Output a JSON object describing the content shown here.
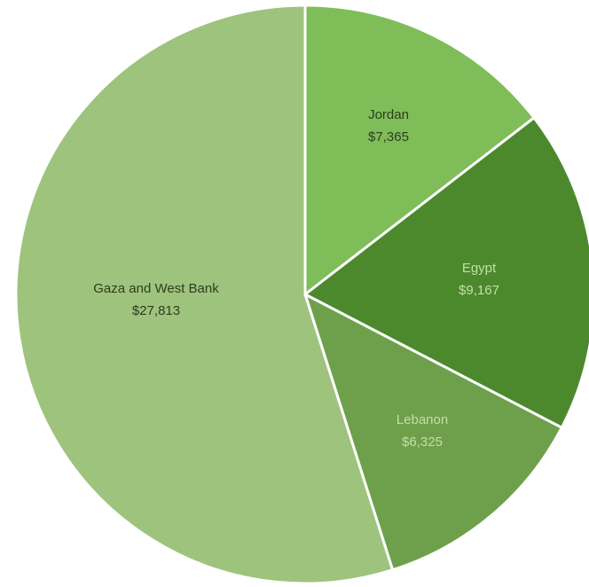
{
  "chart_data": {
    "type": "pie",
    "slices": [
      {
        "label": "Jordan",
        "value_text": "$7,365",
        "value": 7365,
        "color": "#7ebd58",
        "label_color": "#2f3d1e"
      },
      {
        "label": "Egypt",
        "value_text": "$9,167",
        "value": 9167,
        "color": "#4c892d",
        "label_color": "#c6dfa8"
      },
      {
        "label": "Lebanon",
        "value_text": "$6,325",
        "value": 6325,
        "color": "#6ea04b",
        "label_color": "#c6dfa8"
      },
      {
        "label": "Gaza and West Bank",
        "value_text": "$27,813",
        "value": 27813,
        "color": "#9ec37d",
        "label_color": "#2f3d1e"
      }
    ]
  }
}
